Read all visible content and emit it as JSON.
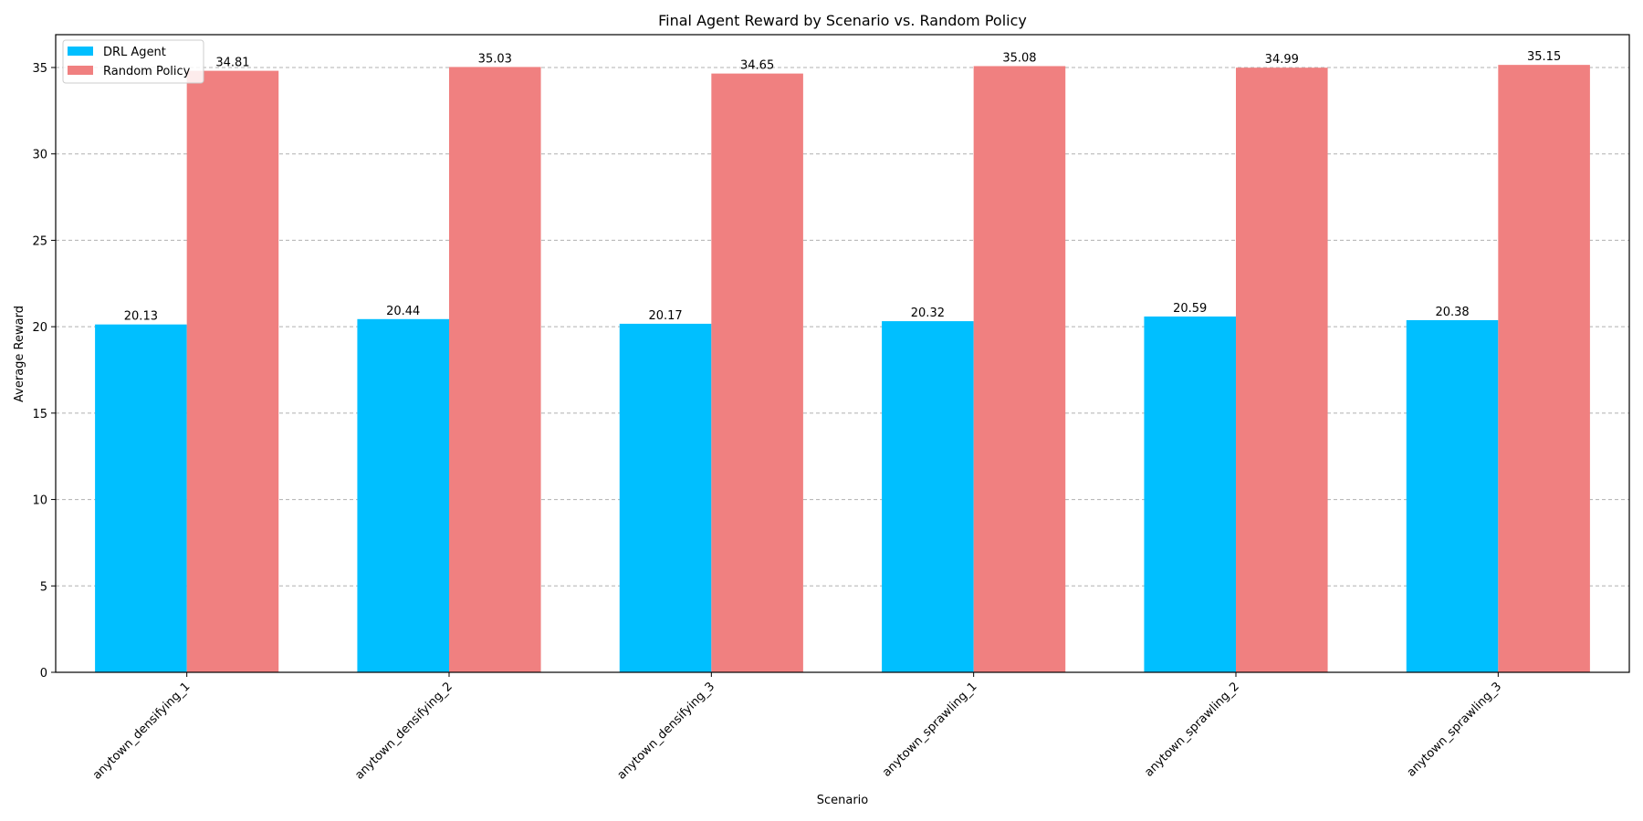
{
  "chart_data": {
    "type": "bar",
    "title": "Final Agent Reward by Scenario vs. Random Policy",
    "xlabel": "Scenario",
    "ylabel": "Average Reward",
    "categories": [
      "anytown_densifying_1",
      "anytown_densifying_2",
      "anytown_densifying_3",
      "anytown_sprawling_1",
      "anytown_sprawling_2",
      "anytown_sprawling_3"
    ],
    "series": [
      {
        "name": "DRL Agent",
        "color": "#00bfff",
        "values": [
          20.13,
          20.44,
          20.17,
          20.32,
          20.59,
          20.38
        ]
      },
      {
        "name": "Random Policy",
        "color": "#f08080",
        "values": [
          34.81,
          35.03,
          34.65,
          35.08,
          34.99,
          35.15
        ]
      }
    ],
    "ylim": [
      0,
      36.9
    ],
    "yticks": [
      0,
      5,
      10,
      15,
      20,
      25,
      30,
      35
    ],
    "grid": "y-dashed",
    "legend_position": "top-left"
  }
}
